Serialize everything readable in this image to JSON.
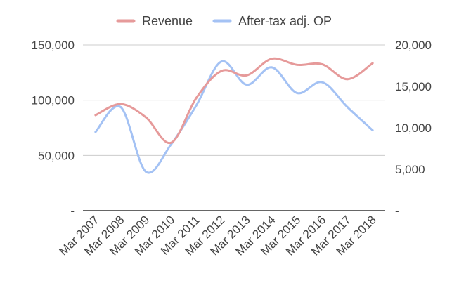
{
  "chart_data": {
    "type": "line",
    "title": "",
    "xlabel": "",
    "ylabel": "",
    "categories": [
      "Mar 2007",
      "Mar 2008",
      "Mar 2009",
      "Mar 2010",
      "Mar 2011",
      "Mar 2012",
      "Mar 2013",
      "Mar 2014",
      "Mar 2015",
      "Mar 2016",
      "Mar 2017",
      "Mar 2018"
    ],
    "legend_position": "top",
    "grid": true,
    "series": [
      {
        "name": "Revenue",
        "axis": "left",
        "color": "#e69a9a",
        "values": [
          86500,
          96500,
          84500,
          61500,
          102000,
          126500,
          122500,
          137500,
          132000,
          132500,
          119000,
          133500
        ]
      },
      {
        "name": "After-tax adj. OP",
        "axis": "right",
        "color": "#a4c2f4",
        "values": [
          9500,
          12500,
          4700,
          8000,
          12700,
          18000,
          15200,
          17300,
          14200,
          15500,
          12500,
          9700
        ]
      }
    ],
    "y_left": {
      "range": [
        0,
        150000
      ],
      "ticks": [
        0,
        50000,
        100000,
        150000
      ],
      "tick_labels": [
        "-",
        "50,000",
        "100,000",
        "150,000"
      ]
    },
    "y_right": {
      "range": [
        0,
        20000
      ],
      "ticks": [
        0,
        5000,
        10000,
        15000,
        20000
      ],
      "tick_labels": [
        "-",
        "5,000",
        "10,000",
        "15,000",
        "20,000"
      ]
    }
  }
}
